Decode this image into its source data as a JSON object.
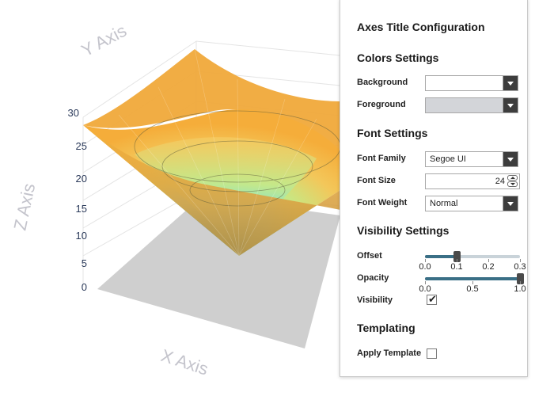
{
  "chart": {
    "x_axis_title": "X Axis",
    "y_axis_title": "Y Axis",
    "z_axis_title": "Z Axis",
    "z_ticks": [
      "0",
      "5",
      "10",
      "15",
      "20",
      "25",
      "30"
    ],
    "colors": {
      "surface_high": "#f5b43a",
      "surface_mid": "#c8e07a",
      "surface_low": "#3ec7f0",
      "floor": "#cfcfcf",
      "axis_title": "#c4c4cc",
      "tick": "#2b3a5a"
    }
  },
  "panel": {
    "title": "Axes Title Configuration",
    "colors": {
      "section": "Colors Settings",
      "background_label": "Background",
      "background_value": "",
      "foreground_label": "Foreground",
      "foreground_value": ""
    },
    "font": {
      "section": "Font Settings",
      "family_label": "Font Family",
      "family_value": "Segoe UI",
      "size_label": "Font Size",
      "size_value": "24",
      "weight_label": "Font Weight",
      "weight_value": "Normal"
    },
    "visibility": {
      "section": "Visibility Settings",
      "offset_label": "Offset",
      "offset_value": 0.1,
      "offset_ticks": [
        "0.0",
        "0.1",
        "0.2",
        "0.3"
      ],
      "opacity_label": "Opacity",
      "opacity_value": 1.0,
      "opacity_ticks": [
        "0.0",
        "0.5",
        "1.0"
      ],
      "visibility_label": "Visibility",
      "visibility_checked": true
    },
    "templating": {
      "section": "Templating",
      "apply_label": "Apply Template",
      "apply_checked": false
    }
  }
}
